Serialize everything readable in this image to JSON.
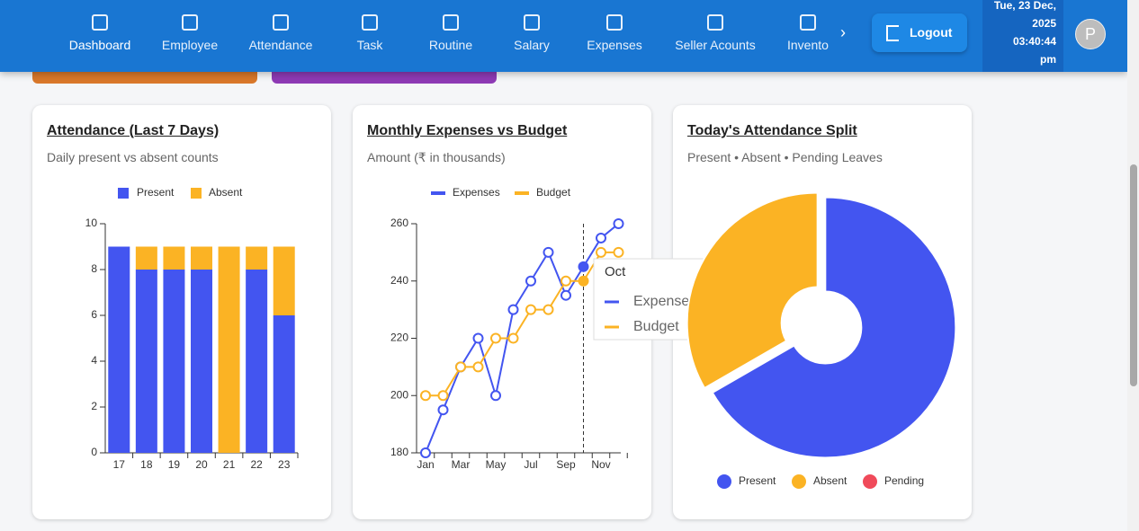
{
  "nav": {
    "items": [
      "Dashboard",
      "Employee",
      "Attendance",
      "Task",
      "Routine",
      "Salary",
      "Expenses",
      "Seller Acounts",
      "Invento"
    ],
    "logout": "Logout",
    "date": "Tue, 23 Dec, 2025",
    "time": "03:40:44 pm",
    "avatar": "P"
  },
  "chart_data": [
    {
      "type": "bar",
      "stacked": true,
      "title": "Attendance (Last 7 Days)",
      "subtitle": "Daily present vs absent counts",
      "categories": [
        "17",
        "18",
        "19",
        "20",
        "21",
        "22",
        "23"
      ],
      "series": [
        {
          "name": "Present",
          "color": "#4355f0",
          "values": [
            9,
            8,
            8,
            8,
            0,
            8,
            6
          ]
        },
        {
          "name": "Absent",
          "color": "#fbb324",
          "values": [
            0,
            1,
            1,
            1,
            9,
            1,
            3
          ]
        }
      ],
      "ylim": [
        0,
        10
      ],
      "yticks": [
        0,
        2,
        4,
        6,
        8,
        10
      ],
      "legend": "top"
    },
    {
      "type": "line",
      "title": "Monthly Expenses vs Budget",
      "subtitle": "Amount (₹ in thousands)",
      "categories": [
        "Jan",
        null,
        "Mar",
        null,
        "May",
        null,
        "Jul",
        null,
        "Sep",
        "Oct",
        "Nov",
        null
      ],
      "series": [
        {
          "name": "Expenses",
          "color": "#4355f0",
          "values": [
            180,
            195,
            210,
            220,
            200,
            230,
            240,
            250,
            235,
            245,
            255,
            260
          ]
        },
        {
          "name": "Budget",
          "color": "#fbb324",
          "values": [
            200,
            200,
            210,
            210,
            220,
            220,
            230,
            230,
            240,
            240,
            250,
            250
          ]
        }
      ],
      "ylim": [
        180,
        260
      ],
      "yticks": [
        180,
        200,
        220,
        240,
        260
      ],
      "legend": "top"
    },
    {
      "type": "pie",
      "title": "Today's Attendance Split",
      "subtitle": "Present • Absent • Pending Leaves",
      "categories": [
        "Present",
        "Absent",
        "Pending"
      ],
      "values": [
        6,
        3,
        0
      ],
      "colors": [
        "#4355f0",
        "#fbb324",
        "#f04a5a"
      ],
      "legend": "bottom"
    }
  ]
}
